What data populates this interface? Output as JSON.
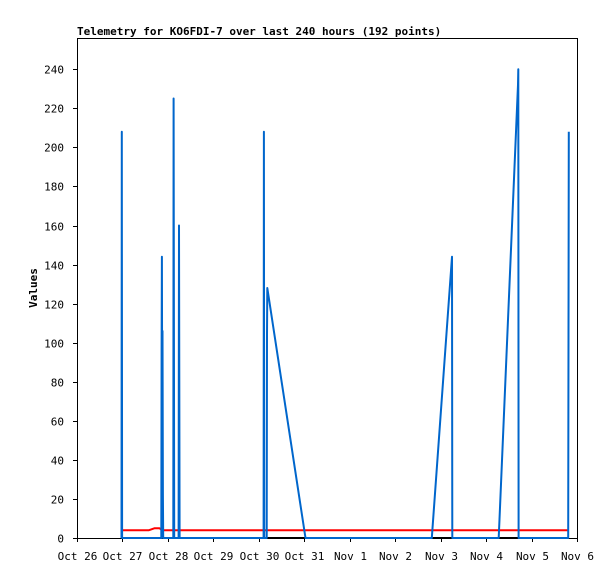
{
  "chart_data": {
    "type": "line",
    "title": "Telemetry for KO6FDI-7 over last 240 hours (192 points)",
    "xlabel": "",
    "ylabel": "Values",
    "x_tick_labels": [
      "Oct 26",
      "Oct 27",
      "Oct 28",
      "Oct 29",
      "Oct 30",
      "Oct 31",
      "Nov 1",
      "Nov 2",
      "Nov 3",
      "Nov 4",
      "Nov 5",
      "Nov 6"
    ],
    "xlim": [
      "2023-10-26T00:00",
      "2023-11-06T00:00"
    ],
    "y_ticks": [
      0,
      20,
      40,
      60,
      80,
      100,
      120,
      140,
      160,
      180,
      200,
      220,
      240
    ],
    "ylim": [
      0,
      256
    ],
    "grid": false,
    "legend": "none",
    "colors": {
      "blue_series": "#0066cc",
      "red_series": "#ff0000",
      "black_series": "#000000"
    },
    "series": [
      {
        "color": "#0066cc",
        "points": [
          [
            "2023-10-26T23:30",
            0
          ],
          [
            "2023-10-26T23:40",
            208
          ],
          [
            "2023-10-26T23:50",
            0
          ],
          [
            "2023-10-27T20:30",
            0
          ],
          [
            "2023-10-27T20:40",
            96
          ],
          [
            "2023-10-27T20:50",
            144
          ],
          [
            "2023-10-27T21:00",
            64
          ],
          [
            "2023-10-27T21:10",
            106
          ],
          [
            "2023-10-27T21:20",
            22
          ],
          [
            "2023-10-27T21:30",
            0
          ],
          [
            "2023-10-28T02:50",
            0
          ],
          [
            "2023-10-28T03:00",
            225
          ],
          [
            "2023-10-28T03:10",
            112
          ],
          [
            "2023-10-28T03:20",
            0
          ],
          [
            "2023-10-28T05:40",
            0
          ],
          [
            "2023-10-28T05:50",
            160
          ],
          [
            "2023-10-28T06:00",
            80
          ],
          [
            "2023-10-28T06:10",
            0
          ],
          [
            "2023-10-30T02:30",
            0
          ],
          [
            "2023-10-30T02:40",
            208
          ],
          [
            "2023-10-30T02:50",
            0
          ],
          [
            "2023-10-30T04:10",
            0
          ],
          [
            "2023-10-30T04:20",
            104
          ],
          [
            "2023-10-30T04:30",
            128
          ],
          [
            "2023-10-31T00:40",
            0
          ],
          [
            "2023-11-02T19:20",
            0
          ],
          [
            "2023-11-03T06:00",
            144
          ],
          [
            "2023-11-03T06:10",
            0
          ],
          [
            "2023-11-04T06:40",
            0
          ],
          [
            "2023-11-04T16:50",
            232
          ],
          [
            "2023-11-04T17:00",
            240
          ],
          [
            "2023-11-04T17:10",
            0
          ],
          [
            "2023-11-05T19:20",
            0
          ],
          [
            "2023-11-05T19:30",
            104
          ],
          [
            "2023-11-05T19:40",
            208
          ]
        ]
      },
      {
        "color": "#ff0000",
        "points": [
          [
            "2023-10-26T23:30",
            4
          ],
          [
            "2023-10-27T14:00",
            4
          ],
          [
            "2023-10-27T17:00",
            5
          ],
          [
            "2023-10-27T19:30",
            5
          ],
          [
            "2023-10-27T21:00",
            4
          ],
          [
            "2023-11-05T19:40",
            4
          ]
        ]
      },
      {
        "color": "#000000",
        "points": [
          [
            "2023-10-26T23:30",
            0
          ],
          [
            "2023-11-05T19:40",
            0
          ]
        ]
      }
    ]
  }
}
